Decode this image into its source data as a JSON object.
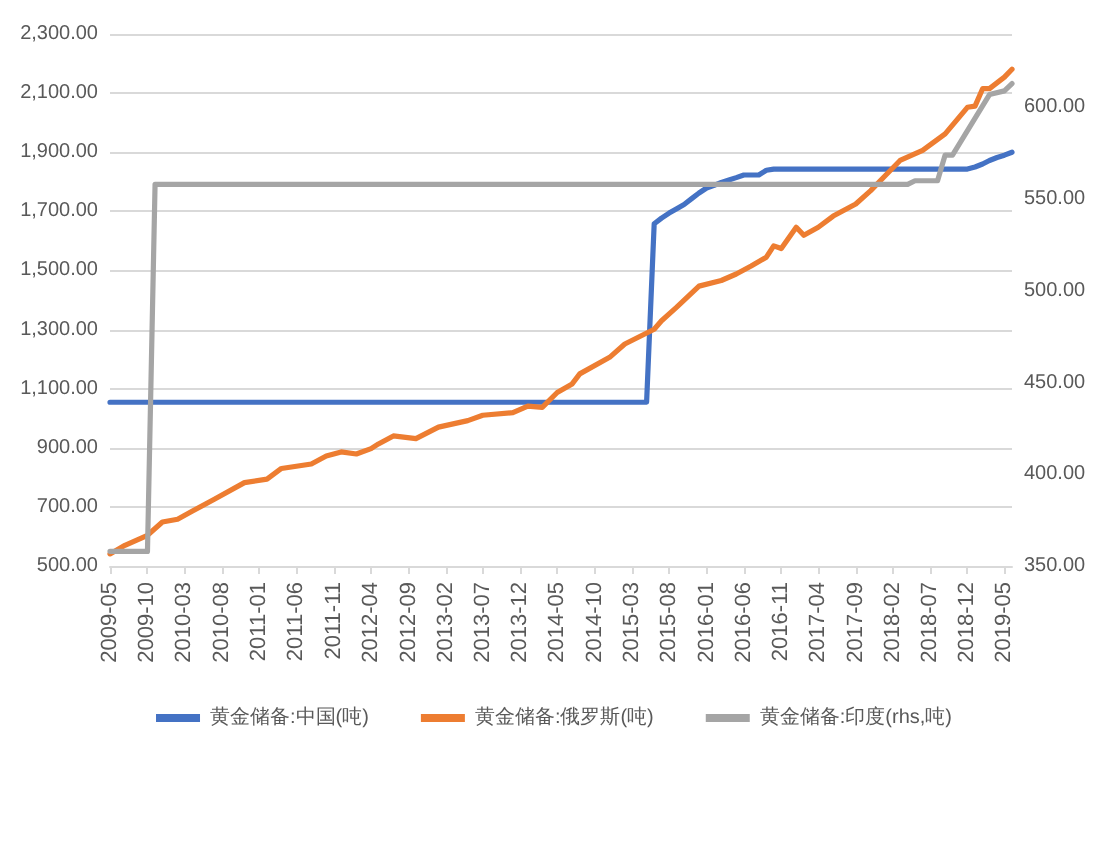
{
  "chart_data": {
    "type": "line",
    "series": [
      {
        "name": "黄金储备:中国(吨)",
        "color": "#4472c4",
        "x": [
          "2009-05",
          "2015-05",
          "2015-06",
          "2015-07",
          "2015-08",
          "2015-09",
          "2015-10",
          "2015-11",
          "2015-12",
          "2016-01",
          "2016-02",
          "2016-03",
          "2016-04",
          "2016-05",
          "2016-06",
          "2016-07",
          "2016-08",
          "2016-09",
          "2016-10",
          "2018-12",
          "2019-01",
          "2019-02",
          "2019-03",
          "2019-04",
          "2019-05",
          "2019-06"
        ],
        "values": [
          1054,
          1054,
          1658,
          1677,
          1694,
          1709,
          1723,
          1743,
          1762,
          1779,
          1788,
          1798,
          1806,
          1814,
          1823,
          1823,
          1823,
          1839,
          1843,
          1843,
          1850,
          1860,
          1872,
          1882,
          1890,
          1900
        ]
      },
      {
        "name": "黄金储备:俄罗斯(吨)",
        "color": "#ed7d31",
        "x": [
          "2009-05",
          "2009-07",
          "2009-10",
          "2009-12",
          "2010-02",
          "2010-04",
          "2010-07",
          "2010-11",
          "2011-02",
          "2011-04",
          "2011-08",
          "2011-10",
          "2011-12",
          "2012-02",
          "2012-04",
          "2012-05",
          "2012-07",
          "2012-10",
          "2013-01",
          "2013-05",
          "2013-07",
          "2013-11",
          "2014-01",
          "2014-03",
          "2014-05",
          "2014-07",
          "2014-08",
          "2014-12",
          "2015-02",
          "2015-06",
          "2015-07",
          "2015-09",
          "2015-12",
          "2016-03",
          "2016-05",
          "2016-07",
          "2016-09",
          "2016-10",
          "2016-11",
          "2017-01",
          "2017-02",
          "2017-04",
          "2017-06",
          "2017-09",
          "2017-11",
          "2018-01",
          "2018-03",
          "2018-06",
          "2018-09",
          "2018-12",
          "2019-01",
          "2019-02",
          "2019-03",
          "2019-05",
          "2019-06"
        ],
        "values": [
          541,
          570,
          604,
          649,
          658,
          685,
          726,
          782,
          794,
          830,
          845,
          872,
          886,
          879,
          897,
          913,
          940,
          931,
          970,
          992,
          1010,
          1019,
          1041,
          1037,
          1087,
          1116,
          1150,
          1206,
          1251,
          1301,
          1330,
          1376,
          1447,
          1466,
          1488,
          1515,
          1545,
          1583,
          1574,
          1646,
          1619,
          1646,
          1684,
          1725,
          1770,
          1822,
          1872,
          1906,
          1962,
          2052,
          2056,
          2115,
          2115,
          2154,
          2181
        ]
      },
      {
        "name": "黄金储备:印度(rhs,吨)",
        "color": "#a5a5a5",
        "axis": "y2",
        "x": [
          "2009-05",
          "2009-10",
          "2009-11",
          "2018-04",
          "2018-05",
          "2018-08",
          "2018-09",
          "2018-10",
          "2019-03",
          "2019-05",
          "2019-06"
        ],
        "values": [
          358,
          358,
          558,
          558,
          560,
          560,
          574,
          574,
          607,
          609,
          613
        ]
      }
    ],
    "xlim": [
      "2009-05",
      "2019-06"
    ],
    "xticks": [
      "2009-05",
      "2009-10",
      "2010-03",
      "2010-08",
      "2011-01",
      "2011-06",
      "2011-11",
      "2012-04",
      "2012-09",
      "2013-02",
      "2013-07",
      "2013-12",
      "2014-05",
      "2014-10",
      "2015-03",
      "2015-08",
      "2016-01",
      "2016-06",
      "2016-11",
      "2017-04",
      "2017-09",
      "2018-02",
      "2018-07",
      "2018-12",
      "2019-05"
    ],
    "ylim": [
      500,
      2300
    ],
    "yticks": [
      {
        "value": 500,
        "label": "500.00"
      },
      {
        "value": 700,
        "label": "700.00"
      },
      {
        "value": 900,
        "label": "900.00"
      },
      {
        "value": 1100,
        "label": "1,100.00"
      },
      {
        "value": 1300,
        "label": "1,300.00"
      },
      {
        "value": 1500,
        "label": "1,500.00"
      },
      {
        "value": 1700,
        "label": "1,700.00"
      },
      {
        "value": 1900,
        "label": "1,900.00"
      },
      {
        "value": 2100,
        "label": "2,100.00"
      },
      {
        "value": 2300,
        "label": "2,300.00"
      }
    ],
    "y2lim": [
      350,
      640
    ],
    "y2ticks": [
      {
        "value": 350,
        "label": "350.00"
      },
      {
        "value": 400,
        "label": "400.00"
      },
      {
        "value": 450,
        "label": "450.00"
      },
      {
        "value": 500,
        "label": "500.00"
      },
      {
        "value": 550,
        "label": "550.00"
      },
      {
        "value": 600,
        "label": "600.00"
      }
    ],
    "grid": "y",
    "legend": "bottom",
    "marker": "none",
    "line_style": "solid"
  }
}
